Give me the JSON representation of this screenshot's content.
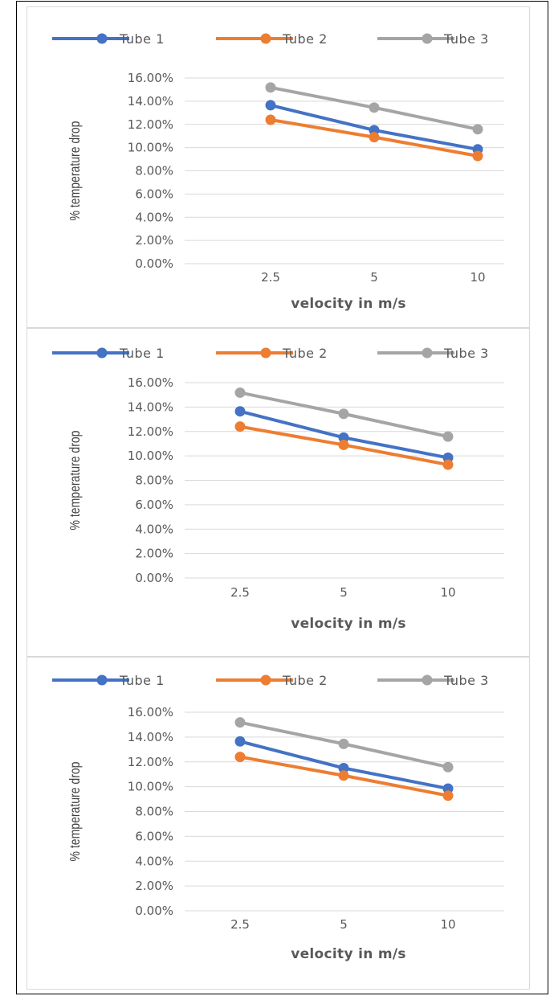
{
  "colors": {
    "tube1": "#4472c4",
    "tube2": "#ed7d31",
    "tube3": "#a5a5a5",
    "grid": "#d9d9d9",
    "text": "#595959"
  },
  "chart_data": [
    {
      "type": "line",
      "categories": [
        "2.5",
        "5",
        "10"
      ],
      "series": [
        {
          "name": "Tube 1",
          "values": [
            0.1365,
            0.115,
            0.0985
          ]
        },
        {
          "name": "Tube 2",
          "values": [
            0.124,
            0.109,
            0.0928
          ]
        },
        {
          "name": "Tube 3",
          "values": [
            0.1518,
            0.1345,
            0.1158
          ]
        }
      ],
      "title": "",
      "xlabel": "velocity in m/s",
      "ylabel": "% temperature drop",
      "ylim": [
        0,
        0.16
      ],
      "yticks": [
        "0.00%",
        "2.00%",
        "4.00%",
        "6.00%",
        "8.00%",
        "10.00%",
        "12.00%",
        "14.00%",
        "16.00%"
      ],
      "grid": true,
      "legend": "top"
    },
    {
      "type": "line",
      "categories": [
        "2.5",
        "5",
        "10"
      ],
      "series": [
        {
          "name": "Tube 1",
          "values": [
            0.1365,
            0.115,
            0.0985
          ]
        },
        {
          "name": "Tube 2",
          "values": [
            0.124,
            0.109,
            0.0928
          ]
        },
        {
          "name": "Tube 3",
          "values": [
            0.1518,
            0.1345,
            0.1158
          ]
        }
      ],
      "title": "",
      "xlabel": "velocity in m/s",
      "ylabel": "% temperature drop",
      "ylim": [
        0,
        0.16
      ],
      "yticks": [
        "0.00%",
        "2.00%",
        "4.00%",
        "6.00%",
        "8.00%",
        "10.00%",
        "12.00%",
        "14.00%",
        "16.00%"
      ],
      "grid": true,
      "legend": "top"
    },
    {
      "type": "line",
      "categories": [
        "2.5",
        "5",
        "10"
      ],
      "series": [
        {
          "name": "Tube 1",
          "values": [
            0.1365,
            0.115,
            0.0985
          ]
        },
        {
          "name": "Tube 2",
          "values": [
            0.124,
            0.109,
            0.0928
          ]
        },
        {
          "name": "Tube 3",
          "values": [
            0.1518,
            0.1345,
            0.1158
          ]
        }
      ],
      "title": "",
      "xlabel": "velocity in m/s",
      "ylabel": "% temperature drop",
      "ylim": [
        0,
        0.16
      ],
      "yticks": [
        "0.00%",
        "2.00%",
        "4.00%",
        "6.00%",
        "8.00%",
        "10.00%",
        "12.00%",
        "14.00%",
        "16.00%"
      ],
      "grid": true,
      "legend": "top"
    }
  ]
}
